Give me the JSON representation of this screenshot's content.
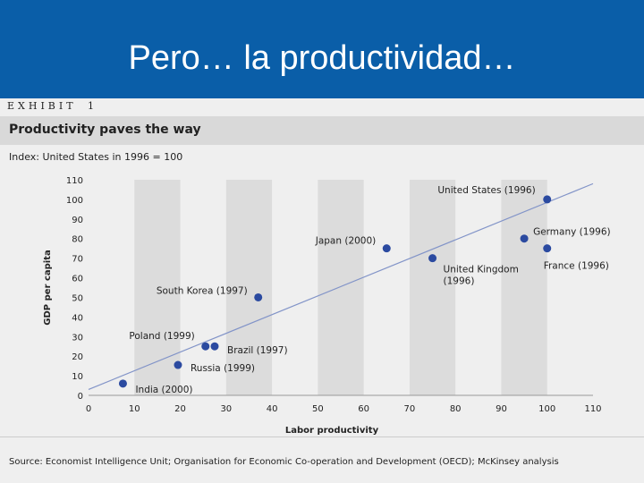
{
  "slide": {
    "title": "Pero… la productividad…"
  },
  "exhibit": {
    "label": "EXHIBIT",
    "number": "1"
  },
  "source": "Source: Economist Intelligence Unit; Organisation for Economic Co-operation and Development (OECD); McKinsey analysis",
  "colors": {
    "header": "#0a5ea8",
    "point": "#2b4aa0",
    "trend": "#8294c8",
    "band": "#dcdcdc"
  },
  "chart_data": {
    "type": "scatter",
    "title": "Productivity paves the way",
    "subtitle": "Index: United States in 1996 = 100",
    "xlabel": "Labor productivity",
    "ylabel": "GDP per capita",
    "xlim": [
      0,
      110
    ],
    "ylim": [
      0,
      110
    ],
    "xticks": [
      "0",
      "10",
      "20",
      "30",
      "40",
      "50",
      "60",
      "70",
      "80",
      "90",
      "100",
      "110"
    ],
    "yticks": [
      "0",
      "10",
      "20",
      "30",
      "40",
      "50",
      "60",
      "70",
      "80",
      "90",
      "100",
      "110"
    ],
    "trendline": [
      [
        0,
        3
      ],
      [
        110,
        108
      ]
    ],
    "points": [
      {
        "label": "India (2000)",
        "x": 7.5,
        "y": 6
      },
      {
        "label": "Russia (1999)",
        "x": 19.5,
        "y": 15.5
      },
      {
        "label": "Poland (1999)",
        "x": 25.5,
        "y": 25
      },
      {
        "label": "Brazil (1997)",
        "x": 27.5,
        "y": 25
      },
      {
        "label": "South Korea (1997)",
        "x": 37,
        "y": 50
      },
      {
        "label": "Japan (2000)",
        "x": 65,
        "y": 75
      },
      {
        "label": "United Kingdom (1996)",
        "x": 75,
        "y": 70
      },
      {
        "label": "Germany (1996)",
        "x": 95,
        "y": 80
      },
      {
        "label": "France (1996)",
        "x": 100,
        "y": 75
      },
      {
        "label": "United States (1996)",
        "x": 100,
        "y": 100
      }
    ]
  }
}
